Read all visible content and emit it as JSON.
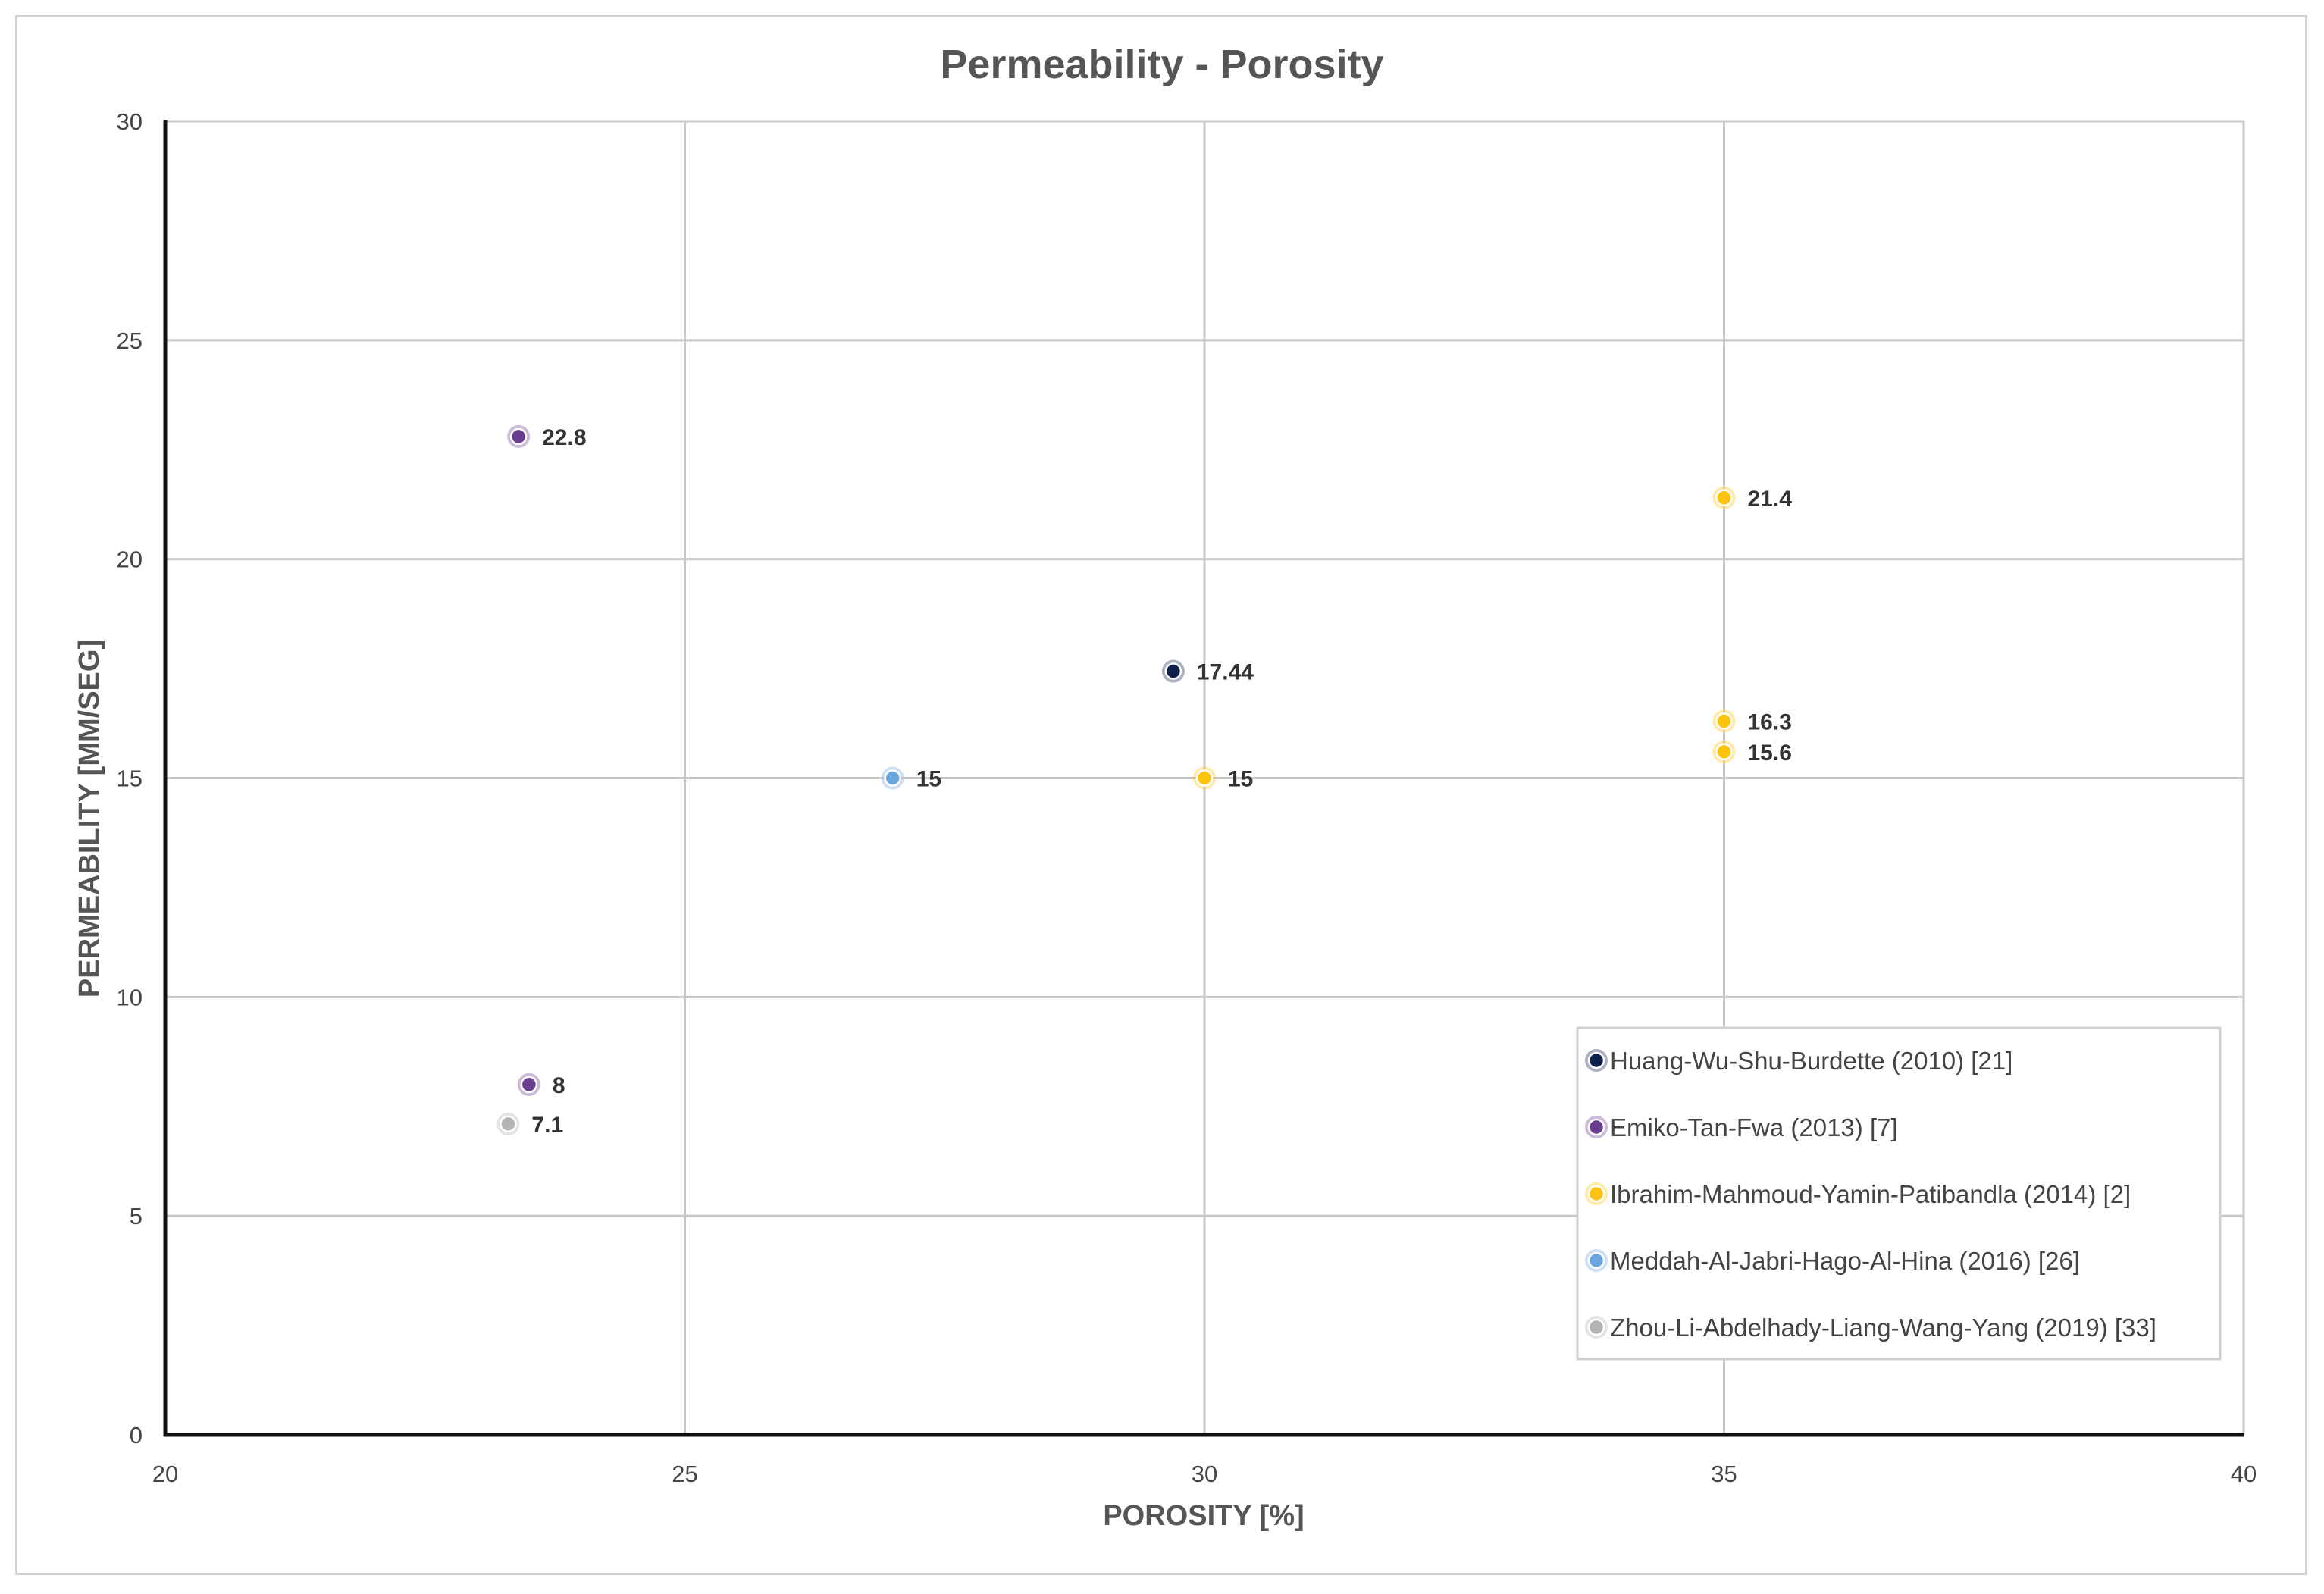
{
  "chart_data": {
    "type": "scatter",
    "title": "Permeability - Porosity",
    "xlabel": "POROSITY [%]",
    "ylabel": "PERMEABILITY [MM/SEG]",
    "xlim": [
      20,
      40
    ],
    "ylim": [
      0,
      30
    ],
    "xticks": [
      "20",
      "25",
      "30",
      "35",
      "40"
    ],
    "yticks": [
      "0",
      "5",
      "10",
      "15",
      "20",
      "25",
      "30"
    ],
    "grid": true,
    "legend_position": "bottom-right",
    "series": [
      {
        "name": "Huang-Wu-Shu-Burdette (2010) [21]",
        "color": "#0d1f4c",
        "points": [
          {
            "x": 29.7,
            "y": 17.44,
            "label": "17.44"
          }
        ]
      },
      {
        "name": "Emiko-Tan-Fwa (2013) [7]",
        "color": "#6a3d8f",
        "points": [
          {
            "x": 23.4,
            "y": 22.8,
            "label": "22.8"
          },
          {
            "x": 23.5,
            "y": 8,
            "label": "8"
          }
        ]
      },
      {
        "name": "Ibrahim-Mahmoud-Yamin-Patibandla (2014) [2]",
        "color": "#ffc20e",
        "points": [
          {
            "x": 35,
            "y": 21.4,
            "label": "21.4"
          },
          {
            "x": 35,
            "y": 16.3,
            "label": "16.3"
          },
          {
            "x": 35,
            "y": 15.6,
            "label": "15.6"
          },
          {
            "x": 30,
            "y": 15,
            "label": "15"
          }
        ]
      },
      {
        "name": "Meddah-Al-Jabri-Hago-Al-Hina (2016) [26]",
        "color": "#6aa7e0",
        "points": [
          {
            "x": 27,
            "y": 15,
            "label": "15"
          }
        ]
      },
      {
        "name": "Zhou-Li-Abdelhady-Liang-Wang-Yang (2019) [33]",
        "color": "#b3b3b3",
        "points": [
          {
            "x": 23.3,
            "y": 7.1,
            "label": "7.1"
          }
        ]
      }
    ]
  }
}
